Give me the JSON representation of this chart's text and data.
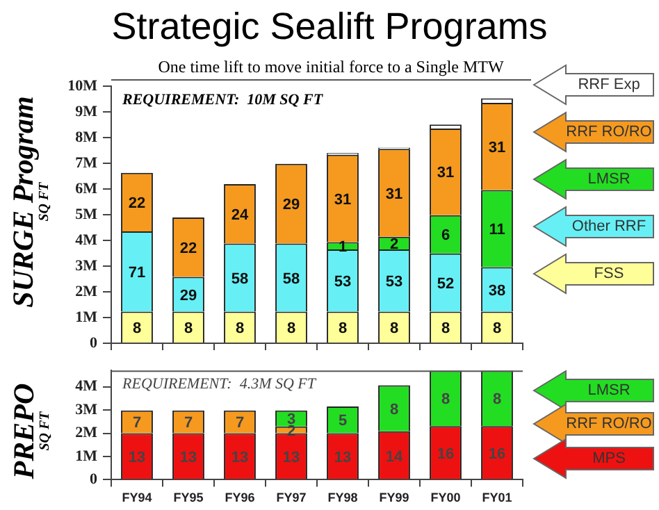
{
  "chart_data": [
    {
      "type": "bar",
      "title": "Strategic Sealift Programs",
      "ylabel": "SURGE Program\nSQ FT",
      "stacked": true,
      "tick_labels": "y",
      "legend": "right",
      "grid": false,
      "annotations": [
        "One time lift to move initial force to a Single MTW",
        "REQUIREMENT:  10M SQ FT",
        {
          "text": "8",
          "x": "FY94",
          "y": 1.23
        },
        {
          "text": "8",
          "x": "FY95",
          "y": 1.23
        },
        {
          "text": "8",
          "x": "FY96",
          "y": 1.23
        },
        {
          "text": "8",
          "x": "FY97",
          "y": 1.23
        },
        {
          "text": "8",
          "x": "FY98",
          "y": 1.23
        },
        {
          "text": "8",
          "x": "FY99",
          "y": 1.23
        },
        {
          "text": "8",
          "x": "FY00",
          "y": 1.23
        },
        {
          "text": "8",
          "x": "FY01",
          "y": 1.23
        },
        {
          "text": "71",
          "x": "FY94",
          "y": 4.35
        },
        {
          "text": "29",
          "x": "FY95",
          "y": 2.58
        },
        {
          "text": "58",
          "x": "FY96",
          "y": 3.88
        },
        {
          "text": "58",
          "x": "FY97",
          "y": 3.88
        },
        {
          "text": "53",
          "x": "FY98",
          "y": 3.65
        },
        {
          "text": "53",
          "x": "FY99",
          "y": 3.65
        },
        {
          "text": "52",
          "x": "FY00",
          "y": 3.49
        },
        {
          "text": "38",
          "x": "FY01",
          "y": 2.96
        },
        {
          "text": "1",
          "x": "FY98",
          "y": 3.93
        },
        {
          "text": "2",
          "x": "FY99",
          "y": 4.14
        },
        {
          "text": "6",
          "x": "FY00",
          "y": 4.98
        },
        {
          "text": "11",
          "x": "FY01",
          "y": 5.96
        },
        {
          "text": "22",
          "x": "FY94",
          "y": 6.63
        },
        {
          "text": "22",
          "x": "FY95",
          "y": 4.89
        },
        {
          "text": "24",
          "x": "FY96",
          "y": 6.19
        },
        {
          "text": "29",
          "x": "FY97",
          "y": 6.98
        },
        {
          "text": "31",
          "x": "FY98",
          "y": 7.33
        },
        {
          "text": "31",
          "x": "FY99",
          "y": 7.56
        },
        {
          "text": "31",
          "x": "FY00",
          "y": 8.35
        },
        {
          "text": "31",
          "x": "FY01",
          "y": 9.35
        }
      ],
      "categories": [
        "FY94",
        "FY95",
        "FY96",
        "FY97",
        "FY98",
        "FY99",
        "FY00",
        "FY01"
      ],
      "ylim": [
        0,
        10
      ],
      "yticks": [
        0,
        {
          "value": 1,
          "label": "1M"
        },
        {
          "value": 2,
          "label": "2M"
        },
        {
          "value": 3,
          "label": "3M"
        },
        {
          "value": 4,
          "label": "4M"
        },
        {
          "value": 5,
          "label": "5M"
        },
        {
          "value": 6,
          "label": "6M"
        },
        {
          "value": 7,
          "label": "7M"
        },
        {
          "value": 8,
          "label": "8M"
        },
        {
          "value": 9,
          "label": "9M"
        },
        {
          "value": 10,
          "label": "10M"
        }
      ],
      "series": [
        {
          "name": "FSS",
          "color": "#ffff99",
          "values": [
            1.23,
            1.23,
            1.23,
            1.23,
            1.23,
            1.23,
            1.23,
            1.23
          ]
        },
        {
          "name": "Other RRF",
          "color": "#66f0f5",
          "values": [
            3.12,
            1.35,
            2.65,
            2.65,
            2.42,
            2.42,
            2.26,
            1.73
          ]
        },
        {
          "name": "LMSR",
          "color": "#22dd22",
          "values": [
            null,
            null,
            null,
            null,
            0.28,
            0.49,
            1.49,
            3.0
          ]
        },
        {
          "name": "RRF RO/RO",
          "color": "#f59a1f",
          "values": [
            2.28,
            2.31,
            2.31,
            3.1,
            3.4,
            3.42,
            3.37,
            3.39
          ]
        },
        {
          "name": "RRF Exp",
          "color": "#ffffff",
          "values": [
            null,
            null,
            null,
            null,
            0.07,
            0.05,
            0.16,
            0.18
          ]
        }
      ]
    },
    {
      "type": "bar",
      "ylabel": "PREPO\nSQ FT",
      "stacked": true,
      "legend": "right",
      "grid": false,
      "annotations": [
        "REQUIREMENT:  4.3M SQ FT",
        {
          "text": "13",
          "x": "FY94",
          "y": 2.0
        },
        {
          "text": "13",
          "x": "FY95",
          "y": 2.0
        },
        {
          "text": "13",
          "x": "FY96",
          "y": 2.0
        },
        {
          "text": "13",
          "x": "FY97",
          "y": 2.0
        },
        {
          "text": "13",
          "x": "FY98",
          "y": 2.0
        },
        {
          "text": "14",
          "x": "FY99",
          "y": 2.08
        },
        {
          "text": "16",
          "x": "FY00",
          "y": 2.31
        },
        {
          "text": "16",
          "x": "FY01",
          "y": 2.31
        },
        {
          "text": "7",
          "x": "FY94",
          "y": 2.98
        },
        {
          "text": "7",
          "x": "FY95",
          "y": 2.98
        },
        {
          "text": "7",
          "x": "FY96",
          "y": 2.98
        },
        {
          "text": "2",
          "x": "FY97",
          "y": 2.29
        },
        {
          "text": "3",
          "x": "FY97",
          "y": 2.98
        },
        {
          "text": "5",
          "x": "FY98",
          "y": 3.15
        },
        {
          "text": "8",
          "x": "FY99",
          "y": 4.06
        },
        {
          "text": "8",
          "x": "FY00",
          "y": 4.69
        },
        {
          "text": "8",
          "x": "FY01",
          "y": 4.69
        }
      ],
      "categories": [
        "FY94",
        "FY95",
        "FY96",
        "FY97",
        "FY98",
        "FY99",
        "FY00",
        "FY01"
      ],
      "ylim": [
        0,
        4.7
      ],
      "yticks": [
        0,
        {
          "value": 1,
          "label": "1M"
        },
        {
          "value": 2,
          "label": "2M"
        },
        {
          "value": 3,
          "label": "3M"
        },
        {
          "value": 4,
          "label": "4M"
        }
      ],
      "series": [
        {
          "name": "MPS",
          "color": "#ee1111",
          "values": [
            2.0,
            2.0,
            2.0,
            2.0,
            2.0,
            2.08,
            2.31,
            2.31
          ]
        },
        {
          "name": "RRF RO/RO",
          "color": "#f59a1f",
          "values": [
            0.98,
            0.98,
            0.98,
            0.29,
            null,
            null,
            null,
            null
          ]
        },
        {
          "name": "LMSR",
          "color": "#22dd22",
          "values": [
            null,
            null,
            null,
            0.69,
            1.15,
            1.98,
            2.38,
            2.38
          ]
        }
      ]
    }
  ]
}
